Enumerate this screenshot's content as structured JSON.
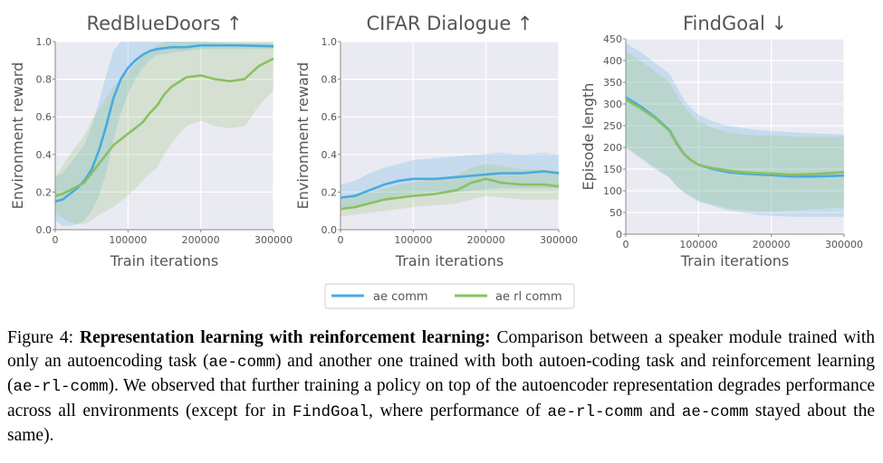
{
  "colors": {
    "ae_comm": "#4aaae0",
    "ae_rl_comm": "#8cc060",
    "plot_bg": "#eaeaf2",
    "grid": "#ffffff"
  },
  "legend": {
    "placement": "bottom-center",
    "entries": [
      "ae comm",
      "ae rl comm"
    ]
  },
  "chart_data": [
    {
      "type": "line",
      "title": "RedBlueDoors ↑",
      "xlabel": "Train iterations",
      "ylabel": "Environment reward",
      "xlim": [
        0,
        300000
      ],
      "ylim": [
        0,
        1.0
      ],
      "xticks": [
        0,
        100000,
        200000,
        300000
      ],
      "xtick_labels": [
        "0",
        "100000",
        "200000",
        "300000"
      ],
      "yticks": [
        0,
        0.2,
        0.4,
        0.6,
        0.8,
        1.0
      ],
      "ytick_labels": [
        "0.0",
        "0.2",
        "0.4",
        "0.6",
        "0.8",
        "1.0"
      ],
      "series": [
        {
          "name": "ae comm",
          "x": [
            0,
            10000,
            20000,
            30000,
            40000,
            50000,
            60000,
            70000,
            80000,
            90000,
            100000,
            110000,
            120000,
            130000,
            140000,
            160000,
            180000,
            200000,
            250000,
            300000
          ],
          "y": [
            0.15,
            0.16,
            0.19,
            0.22,
            0.26,
            0.32,
            0.42,
            0.55,
            0.7,
            0.8,
            0.86,
            0.9,
            0.93,
            0.95,
            0.96,
            0.97,
            0.97,
            0.98,
            0.98,
            0.975
          ],
          "lower": [
            0.05,
            0.02,
            0.02,
            0.03,
            0.05,
            0.1,
            0.18,
            0.3,
            0.48,
            0.62,
            0.72,
            0.8,
            0.86,
            0.9,
            0.93,
            0.94,
            0.95,
            0.96,
            0.96,
            0.96
          ],
          "upper": [
            0.28,
            0.3,
            0.35,
            0.4,
            0.45,
            0.55,
            0.68,
            0.82,
            0.95,
            1.0,
            1.0,
            1.0,
            1.0,
            1.0,
            1.0,
            1.0,
            1.0,
            1.0,
            0.99,
            0.99
          ]
        },
        {
          "name": "ae rl comm",
          "x": [
            0,
            10000,
            20000,
            30000,
            40000,
            50000,
            60000,
            70000,
            80000,
            90000,
            100000,
            110000,
            120000,
            130000,
            140000,
            150000,
            160000,
            180000,
            200000,
            220000,
            240000,
            260000,
            280000,
            300000
          ],
          "y": [
            0.18,
            0.19,
            0.21,
            0.23,
            0.25,
            0.3,
            0.35,
            0.4,
            0.45,
            0.48,
            0.51,
            0.54,
            0.57,
            0.62,
            0.66,
            0.72,
            0.76,
            0.81,
            0.82,
            0.8,
            0.79,
            0.8,
            0.87,
            0.91
          ],
          "lower": [
            0.1,
            0.06,
            0.04,
            0.03,
            0.03,
            0.05,
            0.08,
            0.1,
            0.12,
            0.15,
            0.18,
            0.22,
            0.26,
            0.3,
            0.33,
            0.4,
            0.46,
            0.55,
            0.58,
            0.55,
            0.54,
            0.55,
            0.66,
            0.74
          ],
          "upper": [
            0.28,
            0.34,
            0.4,
            0.45,
            0.5,
            0.58,
            0.64,
            0.7,
            0.76,
            0.8,
            0.84,
            0.88,
            0.92,
            0.95,
            0.98,
            1.0,
            1.0,
            1.0,
            1.0,
            1.0,
            1.0,
            1.0,
            1.0,
            1.0
          ]
        }
      ]
    },
    {
      "type": "line",
      "title": "CIFAR Dialogue ↑",
      "xlabel": "Train iterations",
      "ylabel": "Environment reward",
      "xlim": [
        0,
        300000
      ],
      "ylim": [
        0,
        1.0
      ],
      "xticks": [
        0,
        100000,
        200000,
        300000
      ],
      "xtick_labels": [
        "0",
        "100000",
        "200000",
        "300000"
      ],
      "yticks": [
        0,
        0.2,
        0.4,
        0.6,
        0.8,
        1.0
      ],
      "ytick_labels": [
        "0.0",
        "0.2",
        "0.4",
        "0.6",
        "0.8",
        "1.0"
      ],
      "series": [
        {
          "name": "ae comm",
          "x": [
            0,
            20000,
            40000,
            60000,
            80000,
            100000,
            130000,
            160000,
            190000,
            220000,
            250000,
            280000,
            300000
          ],
          "y": [
            0.17,
            0.18,
            0.21,
            0.24,
            0.26,
            0.27,
            0.27,
            0.28,
            0.29,
            0.3,
            0.3,
            0.31,
            0.3
          ],
          "lower": [
            0.12,
            0.12,
            0.14,
            0.16,
            0.18,
            0.19,
            0.2,
            0.2,
            0.21,
            0.22,
            0.22,
            0.22,
            0.22
          ],
          "upper": [
            0.24,
            0.26,
            0.3,
            0.33,
            0.35,
            0.37,
            0.38,
            0.39,
            0.4,
            0.41,
            0.4,
            0.41,
            0.4
          ]
        },
        {
          "name": "ae rl comm",
          "x": [
            0,
            20000,
            40000,
            60000,
            80000,
            100000,
            130000,
            160000,
            180000,
            200000,
            220000,
            250000,
            280000,
            300000
          ],
          "y": [
            0.11,
            0.12,
            0.14,
            0.16,
            0.17,
            0.18,
            0.19,
            0.21,
            0.25,
            0.27,
            0.25,
            0.24,
            0.24,
            0.23
          ],
          "lower": [
            0.07,
            0.08,
            0.09,
            0.1,
            0.11,
            0.12,
            0.13,
            0.14,
            0.16,
            0.18,
            0.17,
            0.16,
            0.16,
            0.16
          ],
          "upper": [
            0.16,
            0.18,
            0.2,
            0.22,
            0.24,
            0.25,
            0.27,
            0.29,
            0.33,
            0.35,
            0.34,
            0.32,
            0.32,
            0.31
          ]
        }
      ]
    },
    {
      "type": "line",
      "title": "FindGoal ↓",
      "xlabel": "Train iterations",
      "ylabel": "Episode length",
      "xlim": [
        0,
        300000
      ],
      "ylim": [
        0,
        450
      ],
      "xticks": [
        0,
        100000,
        200000,
        300000
      ],
      "xtick_labels": [
        "0",
        "100000",
        "200000",
        "300000"
      ],
      "yticks": [
        0,
        50,
        100,
        150,
        200,
        250,
        300,
        350,
        400,
        450
      ],
      "ytick_labels": [
        "0",
        "50",
        "100",
        "150",
        "200",
        "250",
        "300",
        "350",
        "400",
        "450"
      ],
      "series": [
        {
          "name": "ae comm",
          "x": [
            0,
            20000,
            40000,
            60000,
            70000,
            80000,
            90000,
            100000,
            120000,
            140000,
            160000,
            180000,
            200000,
            230000,
            260000,
            300000
          ],
          "y": [
            315,
            295,
            270,
            240,
            210,
            185,
            170,
            160,
            150,
            143,
            140,
            138,
            136,
            133,
            133,
            135
          ],
          "lower": [
            200,
            175,
            150,
            130,
            110,
            95,
            85,
            75,
            65,
            55,
            50,
            45,
            42,
            40,
            40,
            40
          ],
          "upper": [
            440,
            420,
            395,
            370,
            340,
            310,
            290,
            275,
            260,
            250,
            245,
            240,
            238,
            235,
            232,
            230
          ]
        },
        {
          "name": "ae rl comm",
          "x": [
            0,
            20000,
            40000,
            60000,
            70000,
            80000,
            90000,
            100000,
            120000,
            140000,
            160000,
            180000,
            200000,
            230000,
            260000,
            300000
          ],
          "y": [
            310,
            290,
            268,
            238,
            208,
            184,
            170,
            160,
            152,
            147,
            143,
            141,
            140,
            137,
            139,
            143
          ],
          "lower": [
            200,
            178,
            155,
            132,
            112,
            97,
            88,
            78,
            68,
            60,
            56,
            53,
            52,
            55,
            58,
            62
          ],
          "upper": [
            420,
            400,
            375,
            350,
            320,
            295,
            275,
            260,
            245,
            235,
            230,
            228,
            228,
            225,
            224,
            225
          ]
        }
      ]
    }
  ],
  "caption": {
    "figure_label": "Figure 4:",
    "bold_title": "Representation learning with reinforcement learning:",
    "text_1": " Comparison between a speaker module trained with only an autoencoding task (",
    "code_1": "ae-comm",
    "text_2": ") and another one trained with both autoen-coding task and reinforcement learning (",
    "code_2": "ae-rl-comm",
    "text_3": "). We observed that further training a policy on top of the autoencoder representation degrades performance across all environments (except for in ",
    "code_3": "FindGoal",
    "text_4": ", where performance of ",
    "code_4": "ae-rl-comm",
    "text_5": " and ",
    "code_5": "ae-comm",
    "text_6": " stayed about the same)."
  }
}
